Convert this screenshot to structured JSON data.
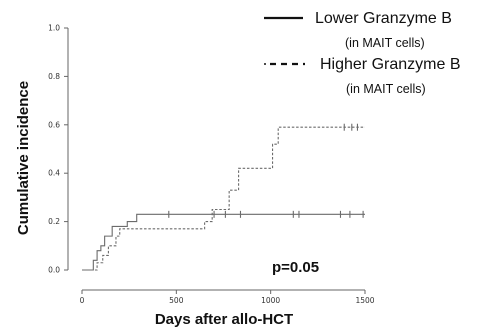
{
  "chart_data": {
    "type": "line",
    "xlabel": "Days after allo-HCT",
    "ylabel": "Cumulative incidence",
    "xlim": [
      0,
      1500
    ],
    "ylim": [
      0,
      1.0
    ],
    "x_ticks": [
      0,
      500,
      1000,
      1500
    ],
    "x_tick_labels": [
      "0",
      "500",
      "1000",
      "1500"
    ],
    "y_ticks": [
      0,
      0.2,
      0.4,
      0.6,
      0.8,
      1.0
    ],
    "y_tick_labels": [
      "0.0",
      "0.2",
      "0.4",
      "0.6",
      "0.8",
      "1.0"
    ],
    "annotation": "p=0.05",
    "grid": false,
    "legend_position": "top-right",
    "series": [
      {
        "name": "Lower Granzyme B",
        "name_sub": "(in MAIT cells)",
        "style": "solid",
        "color": "#6b6b6b",
        "steps": [
          [
            0,
            0.0
          ],
          [
            60,
            0.04
          ],
          [
            80,
            0.08
          ],
          [
            100,
            0.1
          ],
          [
            120,
            0.14
          ],
          [
            160,
            0.18
          ],
          [
            240,
            0.2
          ],
          [
            290,
            0.23
          ],
          [
            1500,
            0.23
          ]
        ],
        "censored": [
          [
            460,
            0.23
          ],
          [
            700,
            0.23
          ],
          [
            760,
            0.23
          ],
          [
            840,
            0.23
          ],
          [
            1120,
            0.23
          ],
          [
            1150,
            0.23
          ],
          [
            1370,
            0.23
          ],
          [
            1420,
            0.23
          ],
          [
            1490,
            0.23
          ]
        ]
      },
      {
        "name": "Higher Granzyme B",
        "name_sub": "(in MAIT cells)",
        "style": "dashed",
        "color": "#6b6b6b",
        "steps": [
          [
            0,
            0.0
          ],
          [
            80,
            0.03
          ],
          [
            110,
            0.06
          ],
          [
            140,
            0.1
          ],
          [
            180,
            0.14
          ],
          [
            200,
            0.17
          ],
          [
            650,
            0.2
          ],
          [
            690,
            0.25
          ],
          [
            780,
            0.33
          ],
          [
            830,
            0.42
          ],
          [
            1010,
            0.52
          ],
          [
            1040,
            0.59
          ],
          [
            1500,
            0.59
          ]
        ],
        "censored": [
          [
            1390,
            0.59
          ],
          [
            1430,
            0.59
          ],
          [
            1460,
            0.59
          ]
        ]
      }
    ]
  }
}
